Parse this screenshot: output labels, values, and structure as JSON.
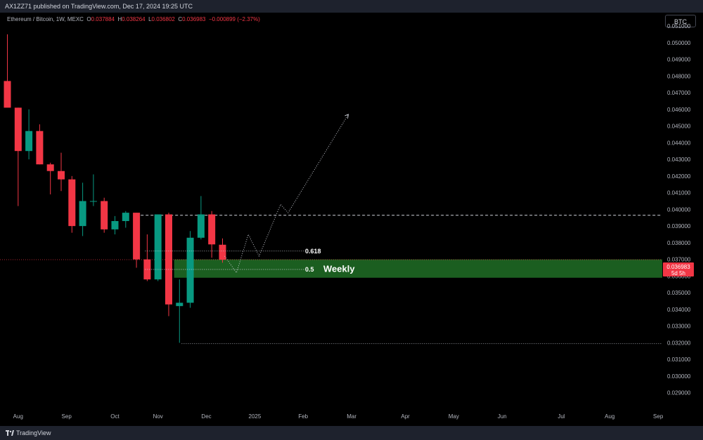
{
  "header": {
    "publish_info": "AX1ZZ71 published on TradingView.com, Dec 17, 2024 19:25 UTC"
  },
  "legend": {
    "symbol": "Ethereum / Bitcoin, 1W, MEXC",
    "o_label": "O",
    "o": "0.037884",
    "h_label": "H",
    "h": "0.038264",
    "l_label": "L",
    "l": "0.036802",
    "c_label": "C",
    "c": "0.036983",
    "change": "−0.000899 (−2.37%)"
  },
  "currency_button": "BTC",
  "price_tag": {
    "price": "0.036983",
    "countdown": "5d 5h"
  },
  "footer": {
    "brand": "TradingView"
  },
  "colors": {
    "up": "#089981",
    "down": "#f23645",
    "zone": "#1b5e20",
    "grid_text": "#b2b5be",
    "background": "#000000"
  },
  "chart_data": {
    "type": "candlestick",
    "title": "",
    "xlabel": "",
    "ylabel": "",
    "ylim": [
      0.0284,
      0.0518
    ],
    "y_ticks": [
      "0.051000",
      "0.050000",
      "0.049000",
      "0.048000",
      "0.047000",
      "0.046000",
      "0.045000",
      "0.044000",
      "0.043000",
      "0.042000",
      "0.041000",
      "0.040000",
      "0.039000",
      "0.038000",
      "0.037000",
      "0.036000",
      "0.035000",
      "0.034000",
      "0.033000",
      "0.032000",
      "0.031000",
      "0.030000",
      "0.029000"
    ],
    "x_ticks": [
      {
        "label": "Aug",
        "index": 1
      },
      {
        "label": "Sep",
        "index": 5.5
      },
      {
        "label": "Oct",
        "index": 10
      },
      {
        "label": "Nov",
        "index": 14
      },
      {
        "label": "Dec",
        "index": 18.5
      },
      {
        "label": "2025",
        "index": 23
      },
      {
        "label": "Feb",
        "index": 27.5
      },
      {
        "label": "Mar",
        "index": 32
      },
      {
        "label": "Apr",
        "index": 37
      },
      {
        "label": "May",
        "index": 41.5
      },
      {
        "label": "Jun",
        "index": 46
      },
      {
        "label": "Jul",
        "index": 51.5
      },
      {
        "label": "Aug",
        "index": 56
      },
      {
        "label": "Sep",
        "index": 60.5
      }
    ],
    "candles": [
      {
        "o": 0.0477,
        "h": 0.0505,
        "l": 0.0462,
        "c": 0.0461
      },
      {
        "o": 0.0461,
        "h": 0.0461,
        "l": 0.0402,
        "c": 0.0435
      },
      {
        "o": 0.0435,
        "h": 0.046,
        "l": 0.043,
        "c": 0.0447
      },
      {
        "o": 0.0447,
        "h": 0.0451,
        "l": 0.0427,
        "c": 0.0427
      },
      {
        "o": 0.0427,
        "h": 0.0428,
        "l": 0.0409,
        "c": 0.0423
      },
      {
        "o": 0.0423,
        "h": 0.0434,
        "l": 0.0411,
        "c": 0.0418
      },
      {
        "o": 0.0418,
        "h": 0.042,
        "l": 0.0386,
        "c": 0.039
      },
      {
        "o": 0.039,
        "h": 0.0416,
        "l": 0.0384,
        "c": 0.0405
      },
      {
        "o": 0.0405,
        "h": 0.0421,
        "l": 0.0402,
        "c": 0.0405
      },
      {
        "o": 0.0405,
        "h": 0.0407,
        "l": 0.0386,
        "c": 0.0388
      },
      {
        "o": 0.0388,
        "h": 0.0396,
        "l": 0.0385,
        "c": 0.0393
      },
      {
        "o": 0.0393,
        "h": 0.0399,
        "l": 0.0389,
        "c": 0.0398
      },
      {
        "o": 0.0398,
        "h": 0.0398,
        "l": 0.0365,
        "c": 0.037
      },
      {
        "o": 0.037,
        "h": 0.0385,
        "l": 0.0357,
        "c": 0.0358
      },
      {
        "o": 0.0358,
        "h": 0.0397,
        "l": 0.0357,
        "c": 0.0397
      },
      {
        "o": 0.0397,
        "h": 0.0398,
        "l": 0.0336,
        "c": 0.0343
      },
      {
        "o": 0.0342,
        "h": 0.0358,
        "l": 0.032,
        "c": 0.0344
      },
      {
        "o": 0.0344,
        "h": 0.0387,
        "l": 0.0341,
        "c": 0.0383
      },
      {
        "o": 0.0383,
        "h": 0.0408,
        "l": 0.0382,
        "c": 0.0397
      },
      {
        "o": 0.0397,
        "h": 0.0399,
        "l": 0.0371,
        "c": 0.0379
      },
      {
        "o": 0.03788,
        "h": 0.03826,
        "l": 0.0368,
        "c": 0.03698
      }
    ],
    "annotations": [
      {
        "label": "0.618",
        "price": 0.0375
      },
      {
        "label": "0.5",
        "price": 0.0364
      },
      {
        "label": "Weekly",
        "zone": [
          0.0359,
          0.037
        ]
      }
    ],
    "levels": {
      "dashed_top": 0.03965,
      "dotted_low": 0.03195,
      "current": 0.036983
    },
    "projection": [
      {
        "i": 20.2,
        "p": 0.0372
      },
      {
        "i": 21.3,
        "p": 0.0362
      },
      {
        "i": 22.4,
        "p": 0.0385
      },
      {
        "i": 23.4,
        "p": 0.0372
      },
      {
        "i": 25.4,
        "p": 0.0403
      },
      {
        "i": 26.1,
        "p": 0.0398
      },
      {
        "i": 31.7,
        "p": 0.0457
      }
    ]
  }
}
